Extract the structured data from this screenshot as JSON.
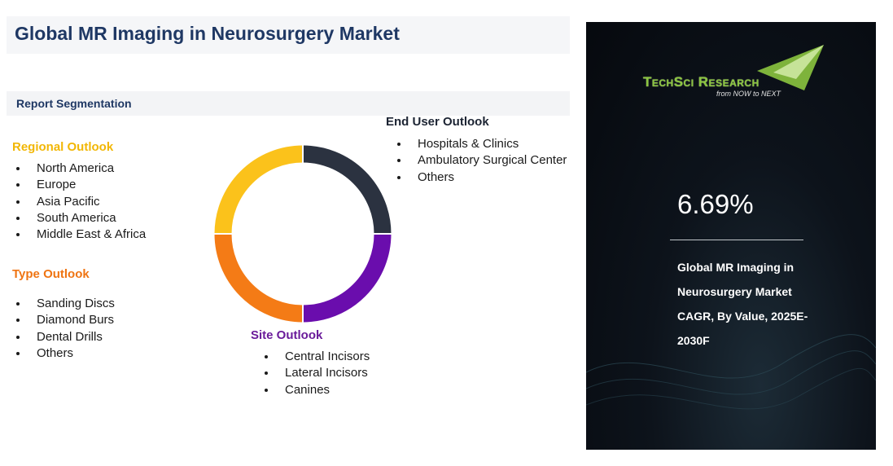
{
  "header": {
    "title": "Global MR Imaging in Neurosurgery Market"
  },
  "segmentation": {
    "label": "Report Segmentation",
    "groups": [
      {
        "title": "Regional Outlook",
        "items": [
          "North America",
          "Europe",
          "Asia Pacific",
          "South America",
          "Middle East & Africa"
        ]
      },
      {
        "title": "Type Outlook",
        "items": [
          "Sanding Discs",
          "Diamond Burs",
          "Dental Drills",
          "Others"
        ]
      },
      {
        "title": "Site Outlook",
        "items": [
          "Central Incisors",
          "Lateral Incisors",
          "Canines"
        ]
      },
      {
        "title": "End User Outlook",
        "items": [
          "Hospitals & Clinics",
          "Ambulatory Surgical Center",
          "Others"
        ]
      }
    ]
  },
  "panel": {
    "brand": "TechSci Research",
    "tagline": "from NOW to NEXT",
    "cagr": "6.69%",
    "description": "Global MR Imaging in Neurosurgery Market CAGR, By Value, 2025E-2030F"
  }
}
